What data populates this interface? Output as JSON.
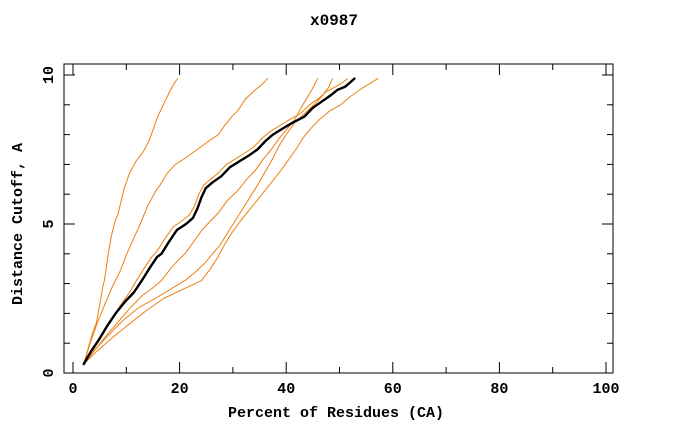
{
  "page": {
    "background_color": "#ffffff"
  },
  "chart_data": {
    "type": "line",
    "title": "x0987",
    "xlabel": "Percent of Residues (CA)",
    "ylabel": "Distance Cutoff, A",
    "xlim": [
      0,
      100
    ],
    "ylim": [
      0,
      10
    ],
    "grid": false,
    "legend": "none",
    "ticks_inward": true,
    "mirror_ticks_all_sides": true,
    "x_ticks": {
      "major": [
        0,
        20,
        40,
        60,
        80,
        100
      ],
      "minor": [
        10,
        30,
        50,
        70,
        90
      ]
    },
    "y_ticks": {
      "major": [
        0,
        5,
        10
      ],
      "minor": [
        1,
        2,
        3,
        4,
        6,
        7,
        8,
        9
      ]
    },
    "colors": {
      "frame": "#000000",
      "main_series": "#000000",
      "comparison_series": "#ee7f11"
    },
    "series": [
      {
        "id": "orange-1",
        "color": "#ee7f11",
        "width": 1,
        "points": [
          [
            2,
            0.3
          ],
          [
            2.8,
            0.8
          ],
          [
            3.6,
            1.3
          ],
          [
            4.4,
            1.7
          ],
          [
            5.0,
            2.3
          ],
          [
            5.6,
            2.9
          ],
          [
            5.9,
            3.1
          ],
          [
            6.3,
            3.6
          ],
          [
            6.6,
            4.0
          ],
          [
            7.2,
            4.6
          ],
          [
            7.9,
            5.1
          ],
          [
            8.4,
            5.3
          ],
          [
            8.8,
            5.6
          ],
          [
            9.6,
            6.2
          ],
          [
            10.6,
            6.7
          ],
          [
            11.8,
            7.1
          ],
          [
            13.1,
            7.4
          ],
          [
            14.3,
            7.8
          ],
          [
            14.9,
            8.1
          ],
          [
            15.9,
            8.6
          ],
          [
            17.2,
            9.1
          ],
          [
            18.6,
            9.6
          ],
          [
            19.6,
            9.88
          ]
        ]
      },
      {
        "id": "orange-2",
        "color": "#ee7f11",
        "width": 1,
        "points": [
          [
            2,
            0.3
          ],
          [
            3.2,
            1.0
          ],
          [
            4.6,
            1.7
          ],
          [
            6.2,
            2.4
          ],
          [
            7.4,
            2.9
          ],
          [
            8.8,
            3.4
          ],
          [
            10.1,
            4.0
          ],
          [
            11.6,
            4.6
          ],
          [
            12.6,
            5.0
          ],
          [
            14.0,
            5.6
          ],
          [
            15.5,
            6.1
          ],
          [
            16.3,
            6.3
          ],
          [
            17.7,
            6.7
          ],
          [
            19.2,
            7.0
          ],
          [
            21.0,
            7.2
          ],
          [
            23.3,
            7.5
          ],
          [
            25.6,
            7.8
          ],
          [
            27.3,
            8.0
          ],
          [
            28.4,
            8.3
          ],
          [
            29.8,
            8.6
          ],
          [
            30.9,
            8.8
          ],
          [
            32.4,
            9.2
          ],
          [
            34.2,
            9.5
          ],
          [
            35.6,
            9.7
          ],
          [
            36.5,
            9.88
          ]
        ]
      },
      {
        "id": "orange-3",
        "color": "#ee7f11",
        "width": 1,
        "points": [
          [
            2,
            0.3
          ],
          [
            3.8,
            0.7
          ],
          [
            6.0,
            1.2
          ],
          [
            8.4,
            1.7
          ],
          [
            10.8,
            2.2
          ],
          [
            13.0,
            2.6
          ],
          [
            14.9,
            2.85
          ],
          [
            16.6,
            3.1
          ],
          [
            18.3,
            3.5
          ],
          [
            19.8,
            3.8
          ],
          [
            21.0,
            4.0
          ],
          [
            22.6,
            4.4
          ],
          [
            24.2,
            4.8
          ],
          [
            25.8,
            5.1
          ],
          [
            27.4,
            5.4
          ],
          [
            29.0,
            5.8
          ],
          [
            30.8,
            6.1
          ],
          [
            32.6,
            6.5
          ],
          [
            34.2,
            6.8
          ],
          [
            35.8,
            7.2
          ],
          [
            37.2,
            7.5
          ],
          [
            38.8,
            7.9
          ],
          [
            40.2,
            8.2
          ],
          [
            41.6,
            8.5
          ],
          [
            42.8,
            8.9
          ],
          [
            43.8,
            9.2
          ],
          [
            44.8,
            9.5
          ],
          [
            45.9,
            9.88
          ]
        ]
      },
      {
        "id": "orange-4",
        "color": "#ee7f11",
        "width": 1,
        "points": [
          [
            2,
            0.3
          ],
          [
            4.2,
            0.8
          ],
          [
            6.8,
            1.3
          ],
          [
            9.6,
            1.8
          ],
          [
            12.4,
            2.2
          ],
          [
            15.4,
            2.5
          ],
          [
            18.2,
            2.8
          ],
          [
            21.0,
            3.1
          ],
          [
            23.0,
            3.4
          ],
          [
            24.8,
            3.7
          ],
          [
            26.2,
            4.0
          ],
          [
            27.6,
            4.3
          ],
          [
            29.0,
            4.7
          ],
          [
            30.4,
            5.1
          ],
          [
            31.8,
            5.5
          ],
          [
            33.2,
            5.9
          ],
          [
            34.6,
            6.3
          ],
          [
            35.9,
            6.7
          ],
          [
            37.2,
            7.1
          ],
          [
            38.6,
            7.6
          ],
          [
            40.0,
            8.0
          ],
          [
            41.6,
            8.4
          ],
          [
            43.4,
            8.7
          ],
          [
            45.2,
            9.0
          ],
          [
            46.8,
            9.3
          ],
          [
            48.0,
            9.6
          ],
          [
            48.7,
            9.88
          ]
        ]
      },
      {
        "id": "orange-5",
        "color": "#ee7f11",
        "width": 1,
        "points": [
          [
            2,
            0.3
          ],
          [
            4.6,
            0.75
          ],
          [
            7.5,
            1.2
          ],
          [
            10.6,
            1.65
          ],
          [
            13.8,
            2.1
          ],
          [
            17.0,
            2.5
          ],
          [
            20.5,
            2.8
          ],
          [
            24.1,
            3.1
          ],
          [
            25.8,
            3.5
          ],
          [
            27.2,
            3.9
          ],
          [
            28.4,
            4.3
          ],
          [
            29.8,
            4.7
          ],
          [
            31.4,
            5.1
          ],
          [
            33.2,
            5.5
          ],
          [
            35.0,
            5.9
          ],
          [
            36.8,
            6.3
          ],
          [
            38.6,
            6.7
          ],
          [
            40.2,
            7.1
          ],
          [
            41.8,
            7.5
          ],
          [
            43.2,
            7.9
          ],
          [
            44.6,
            8.2
          ],
          [
            46.2,
            8.5
          ],
          [
            48.2,
            8.8
          ],
          [
            50.2,
            9.0
          ],
          [
            52.2,
            9.3
          ],
          [
            54.2,
            9.55
          ],
          [
            56.0,
            9.75
          ],
          [
            57.2,
            9.88
          ]
        ]
      },
      {
        "id": "orange-6",
        "color": "#ee7f11",
        "width": 1,
        "points": [
          [
            2,
            0.3
          ],
          [
            3.6,
            0.8
          ],
          [
            5.4,
            1.3
          ],
          [
            7.2,
            1.8
          ],
          [
            9.0,
            2.3
          ],
          [
            10.6,
            2.7
          ],
          [
            11.9,
            3.1
          ],
          [
            13.3,
            3.5
          ],
          [
            14.8,
            3.9
          ],
          [
            15.8,
            4.1
          ],
          [
            17.2,
            4.5
          ],
          [
            18.8,
            4.9
          ],
          [
            20.4,
            5.1
          ],
          [
            21.8,
            5.3
          ],
          [
            22.8,
            5.6
          ],
          [
            23.6,
            6.0
          ],
          [
            24.5,
            6.3
          ],
          [
            25.8,
            6.5
          ],
          [
            27.2,
            6.7
          ],
          [
            28.8,
            7.0
          ],
          [
            30.6,
            7.2
          ],
          [
            32.4,
            7.4
          ],
          [
            34.0,
            7.6
          ],
          [
            35.6,
            7.9
          ],
          [
            37.0,
            8.1
          ],
          [
            38.8,
            8.3
          ],
          [
            40.6,
            8.5
          ],
          [
            42.6,
            8.7
          ],
          [
            44.4,
            9.0
          ],
          [
            46.0,
            9.2
          ],
          [
            47.6,
            9.45
          ],
          [
            49.2,
            9.6
          ],
          [
            50.6,
            9.75
          ],
          [
            51.5,
            9.88
          ]
        ]
      },
      {
        "id": "black-main",
        "color": "#000000",
        "width": 2.4,
        "points": [
          [
            2,
            0.3
          ],
          [
            3.3,
            0.7
          ],
          [
            4.8,
            1.1
          ],
          [
            6.5,
            1.6
          ],
          [
            8.0,
            2.0
          ],
          [
            9.8,
            2.4
          ],
          [
            11.4,
            2.7
          ],
          [
            12.9,
            3.1
          ],
          [
            14.3,
            3.5
          ],
          [
            15.8,
            3.9
          ],
          [
            16.6,
            4.0
          ],
          [
            18.0,
            4.4
          ],
          [
            19.5,
            4.8
          ],
          [
            21.2,
            5.0
          ],
          [
            22.5,
            5.2
          ],
          [
            23.3,
            5.5
          ],
          [
            24.1,
            5.9
          ],
          [
            24.9,
            6.2
          ],
          [
            26.2,
            6.4
          ],
          [
            27.8,
            6.6
          ],
          [
            29.4,
            6.9
          ],
          [
            31.2,
            7.1
          ],
          [
            33.0,
            7.3
          ],
          [
            34.6,
            7.5
          ],
          [
            36.2,
            7.8
          ],
          [
            37.5,
            8.0
          ],
          [
            39.3,
            8.2
          ],
          [
            41.2,
            8.4
          ],
          [
            43.4,
            8.6
          ],
          [
            45.0,
            8.9
          ],
          [
            46.6,
            9.1
          ],
          [
            48.2,
            9.3
          ],
          [
            49.6,
            9.5
          ],
          [
            51.0,
            9.6
          ],
          [
            52.0,
            9.75
          ],
          [
            52.8,
            9.88
          ]
        ]
      }
    ]
  }
}
